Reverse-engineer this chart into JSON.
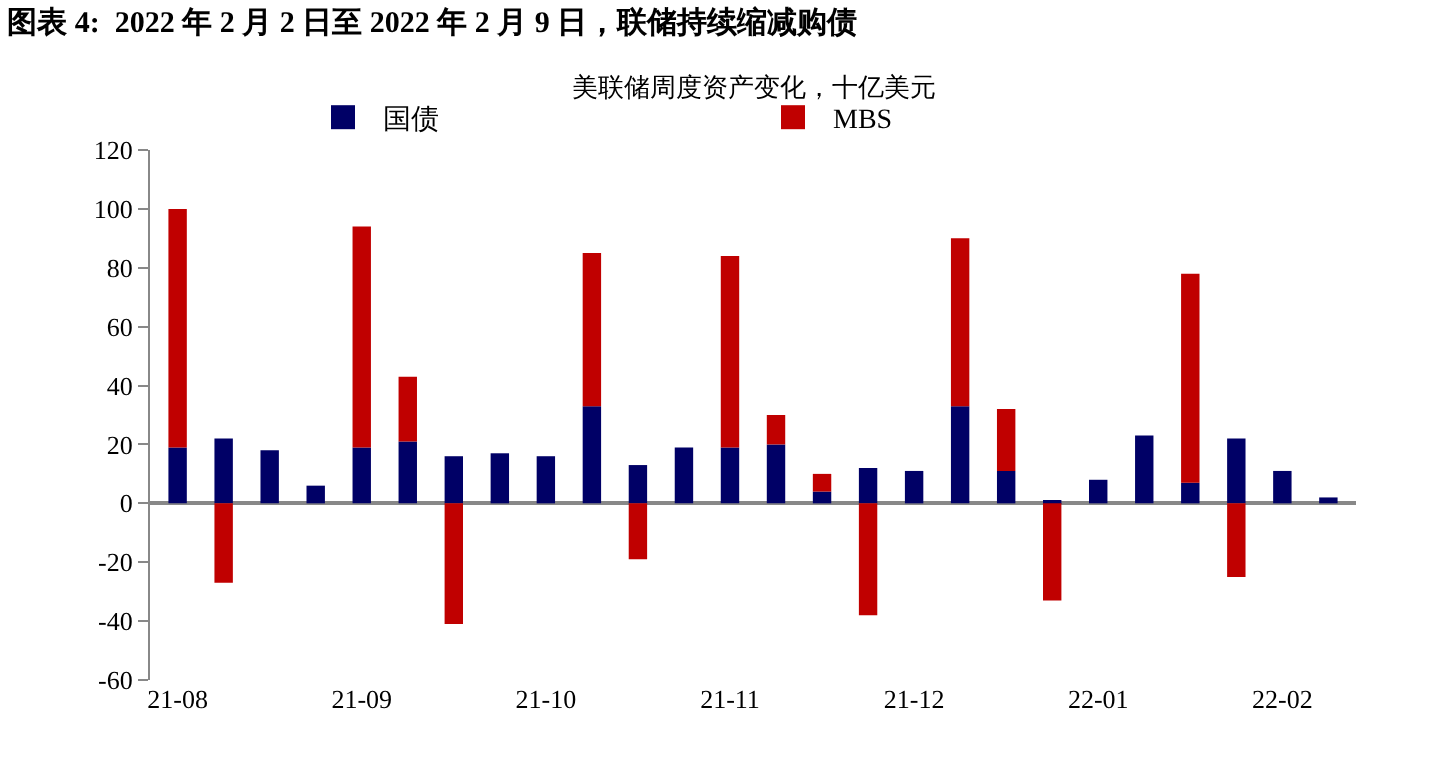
{
  "chart_data": {
    "type": "bar",
    "title": "图表 4:  2022 年 2 月 2 日至 2022 年 2 月 9 日，联储持续缩减购债",
    "subtitle": "美联储周度资产变化，十亿美元",
    "categories": [
      "21-08",
      null,
      null,
      null,
      "21-09",
      null,
      null,
      null,
      "21-10",
      null,
      null,
      null,
      "21-11",
      null,
      null,
      null,
      "21-12",
      null,
      null,
      null,
      "22-01",
      null,
      null,
      null,
      "22-02",
      null
    ],
    "series": [
      {
        "name": "国债",
        "color": "#000066",
        "values": [
          19,
          22,
          18,
          6,
          19,
          21,
          16,
          17,
          16,
          33,
          13,
          19,
          19,
          20,
          4,
          12,
          11,
          33,
          11,
          1,
          8,
          23,
          7,
          22,
          11,
          2
        ]
      },
      {
        "name": "MBS",
        "color": "#c00000",
        "values": [
          81,
          -27,
          null,
          null,
          75,
          22,
          -41,
          null,
          null,
          52,
          -19,
          null,
          65,
          10,
          6,
          -38,
          null,
          57,
          21,
          -33,
          null,
          null,
          71,
          -25,
          null,
          null
        ]
      }
    ],
    "stacked": true,
    "ylim": [
      -60,
      120
    ],
    "yticks": [
      -60,
      -40,
      -20,
      0,
      20,
      40,
      60,
      80,
      100,
      120
    ],
    "legend": "top"
  }
}
